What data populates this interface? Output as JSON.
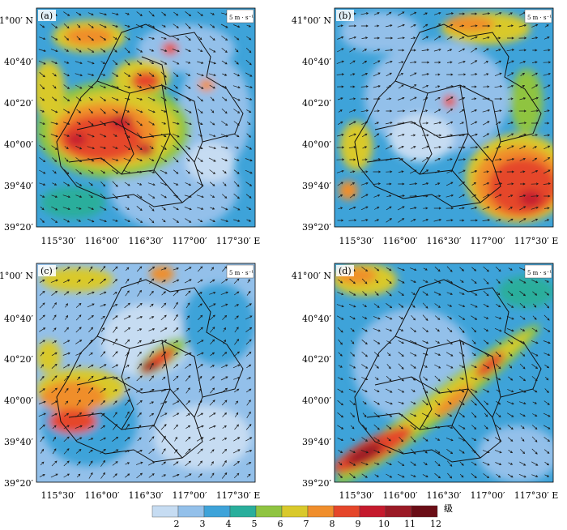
{
  "panels": [
    {
      "label": "(a)",
      "ref_vector": "5 m · s⁻¹"
    },
    {
      "label": "(b)",
      "ref_vector": "5 m · s⁻¹"
    },
    {
      "label": "(c)",
      "ref_vector": "5 m · s⁻¹"
    },
    {
      "label": "(d)",
      "ref_vector": "5 m · s⁻¹"
    }
  ],
  "lat_ticks": [
    "41°00′ N",
    "40°40′",
    "40°20′",
    "40°00′",
    "39°40′",
    "39°20′"
  ],
  "lon_ticks": [
    "115°30′",
    "116°00′",
    "116°30′",
    "117°00′",
    "117°30′ E"
  ],
  "colorbar": {
    "ticks": [
      "2",
      "3",
      "4",
      "5",
      "6",
      "7",
      "8",
      "9",
      "10",
      "11",
      "12"
    ],
    "unit": "级",
    "colors": [
      "#c6dcf2",
      "#93c0ea",
      "#3ea3d9",
      "#29ae9c",
      "#8fc441",
      "#d9c92b",
      "#f08e2c",
      "#e5462a",
      "#c51a2d",
      "#9b1a26",
      "#6a0d16"
    ]
  },
  "layers": {
    "wind_field": "wind speed (grade) shading with wind vectors",
    "boundaries": "district boundary lines"
  }
}
